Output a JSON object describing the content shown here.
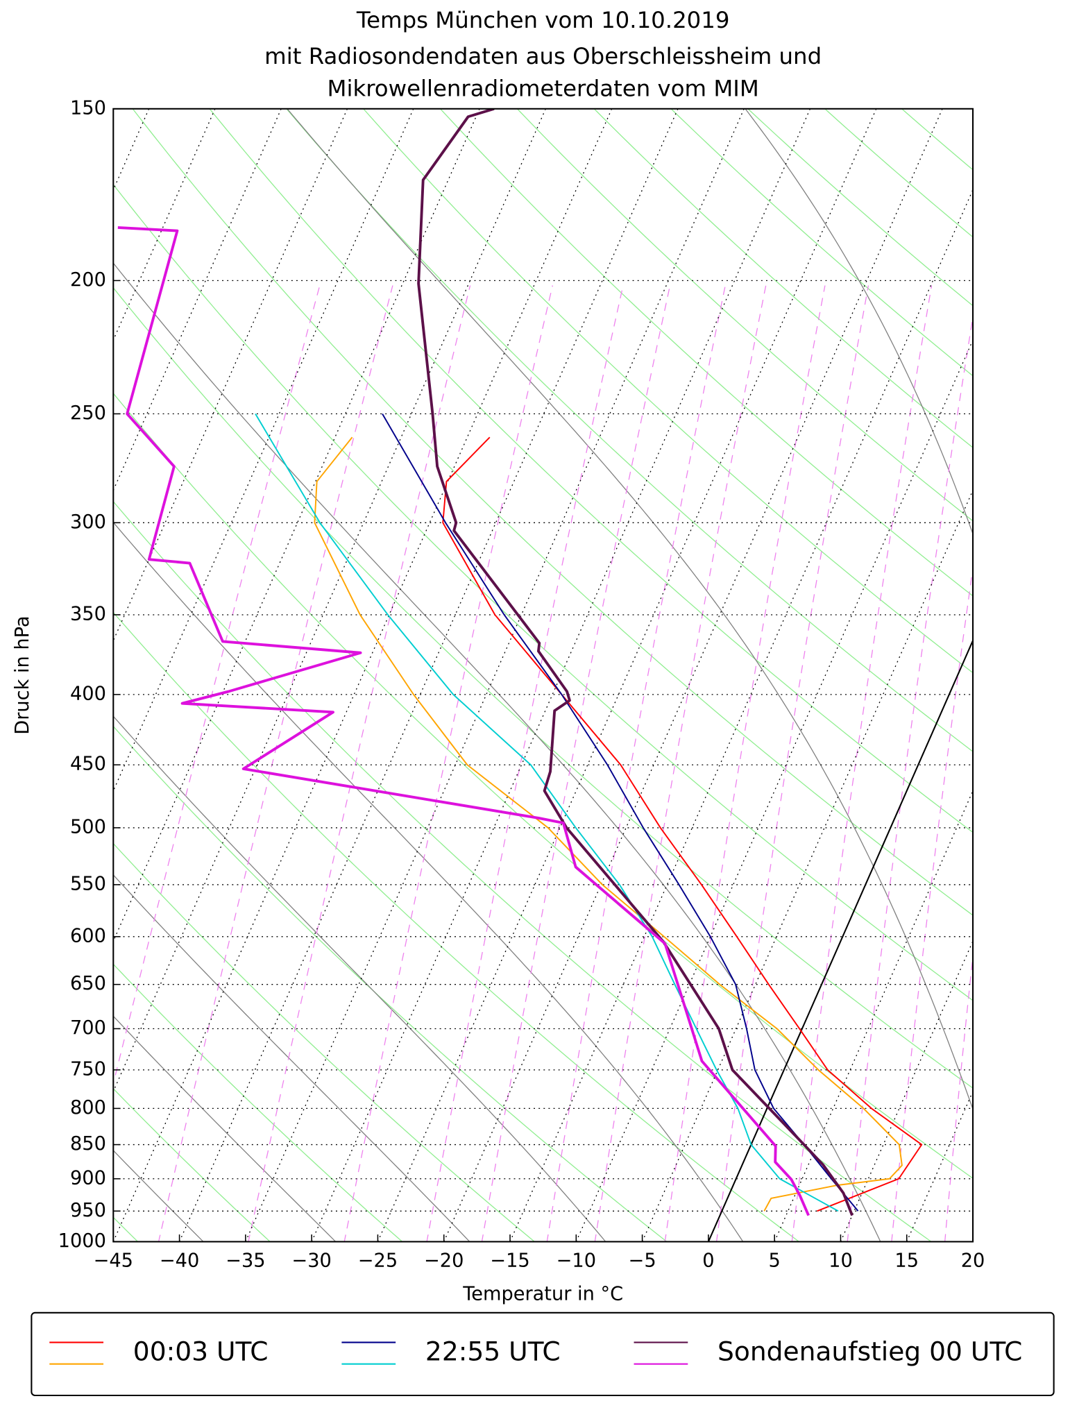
{
  "chart_data": {
    "type": "skewt",
    "title": [
      "Temps München vom 10.10.2019",
      "mit Radiosondendaten aus Oberschleissheim und",
      "Mikrowellenradiometerdaten vom MIM"
    ],
    "xlabel": "Temperatur in °C",
    "ylabel": "Druck in hPa",
    "xlim": [
      -45,
      20
    ],
    "ylim": [
      1000,
      150
    ],
    "y_scale": "log",
    "grid": true,
    "legend_position": "below",
    "xticks": [
      {
        "value": -45,
        "label": "−45"
      },
      {
        "value": -40,
        "label": "−40"
      },
      {
        "value": -35,
        "label": "−35"
      },
      {
        "value": -30,
        "label": "−30"
      },
      {
        "value": -25,
        "label": "−25"
      },
      {
        "value": -20,
        "label": "−20"
      },
      {
        "value": -15,
        "label": "−15"
      },
      {
        "value": -10,
        "label": "−10"
      },
      {
        "value": -5,
        "label": "−5"
      },
      0,
      5,
      10,
      15,
      20
    ],
    "yticks": [
      1000,
      950,
      900,
      850,
      800,
      750,
      700,
      650,
      600,
      550,
      500,
      450,
      400,
      350,
      300,
      250,
      200,
      150
    ],
    "series": [
      {
        "name": "00:03 UTC",
        "lines": [
          {
            "color": "#ff0000",
            "width": 1.5,
            "pressure": [
              950,
              900,
              850,
              800,
              750,
              700,
              650,
              600,
              550,
              500,
              450,
              400,
              350,
              300,
              280,
              260
            ],
            "temperature": [
              7.2,
              12.3,
              12.9,
              7.9,
              3.3,
              -0.2,
              -4.0,
              -8.0,
              -12.4,
              -17.4,
              -22.5,
              -29.3,
              -37.0,
              -44.0,
              -45.1,
              -43.3
            ]
          },
          {
            "color": "#ffa500",
            "width": 1.5,
            "pressure": [
              950,
              930,
              910,
              900,
              880,
              850,
              800,
              750,
              700,
              650,
              600,
              550,
              500,
              450,
              400,
              350,
              300,
              280,
              260
            ],
            "temperature": [
              3.2,
              3.3,
              7.8,
              11.6,
              12.1,
              11.2,
              7.3,
              2.6,
              -1.9,
              -7.7,
              -13.5,
              -19.9,
              -25.9,
              -34.1,
              -40.5,
              -47.2,
              -53.7,
              -54.9,
              -53.7
            ]
          }
        ]
      },
      {
        "name": "22:55 UTC",
        "lines": [
          {
            "color": "#00008b",
            "width": 1.5,
            "pressure": [
              950,
              900,
              850,
              800,
              750,
              700,
              650,
              600,
              550,
              500,
              450,
              400,
              350,
              300,
              250
            ],
            "temperature": [
              10.3,
              7.2,
              4.0,
              0.5,
              -2.2,
              -4.2,
              -6.5,
              -10.0,
              -14.1,
              -18.7,
              -23.5,
              -29.3,
              -36.3,
              -43.8,
              -52.2
            ]
          },
          {
            "color": "#00ced1",
            "width": 1.5,
            "pressure": [
              950,
              900,
              850,
              800,
              750,
              700,
              650,
              600,
              550,
              500,
              450,
              400,
              350,
              300,
              250
            ],
            "temperature": [
              8.8,
              3.3,
              0.0,
              -2.2,
              -5.1,
              -8.0,
              -11.1,
              -14.4,
              -18.6,
              -23.8,
              -29.3,
              -37.5,
              -45.1,
              -53.3,
              -61.8
            ]
          }
        ]
      },
      {
        "name": "Sondenaufstieg 00 UTC",
        "lines": [
          {
            "color": "#5c1049",
            "width": 3,
            "pressure": [
              957,
              922,
              879,
              850,
              750,
              700,
              605,
              500,
              470,
              455,
              411,
              404,
              398,
              372,
              367,
              304,
              300,
              273,
              250,
              201,
              169,
              152,
              150
            ],
            "temperature": [
              10.0,
              8.6,
              6.1,
              4.0,
              -3.9,
              -6.3,
              -13.4,
              -24.5,
              -27.4,
              -27.6,
              -29.3,
              -28.5,
              -29.0,
              -32.5,
              -32.7,
              -42.9,
              -43.0,
              -46.3,
              -48.4,
              -53.8,
              -56.9,
              -55.6,
              -53.9
            ]
          },
          {
            "color": "#dd11dd",
            "width": 3,
            "pressure": [
              957,
              926,
              901,
              875,
              852,
              739,
              607,
              534,
              496,
              492,
              453,
              412,
              406,
              398,
              373,
              366,
              321,
              319,
              273,
              250,
              184,
              183
            ],
            "temperature": [
              6.7,
              5.4,
              4.2,
              2.4,
              1.9,
              -6.5,
              -13.2,
              -22.5,
              -24.9,
              -26.9,
              -50.9,
              -46.0,
              -57.7,
              -54.6,
              -45.9,
              -56.7,
              -61.8,
              -65.0,
              -66.2,
              -71.5,
              -73.8,
              -78.4
            ]
          }
        ]
      }
    ]
  }
}
